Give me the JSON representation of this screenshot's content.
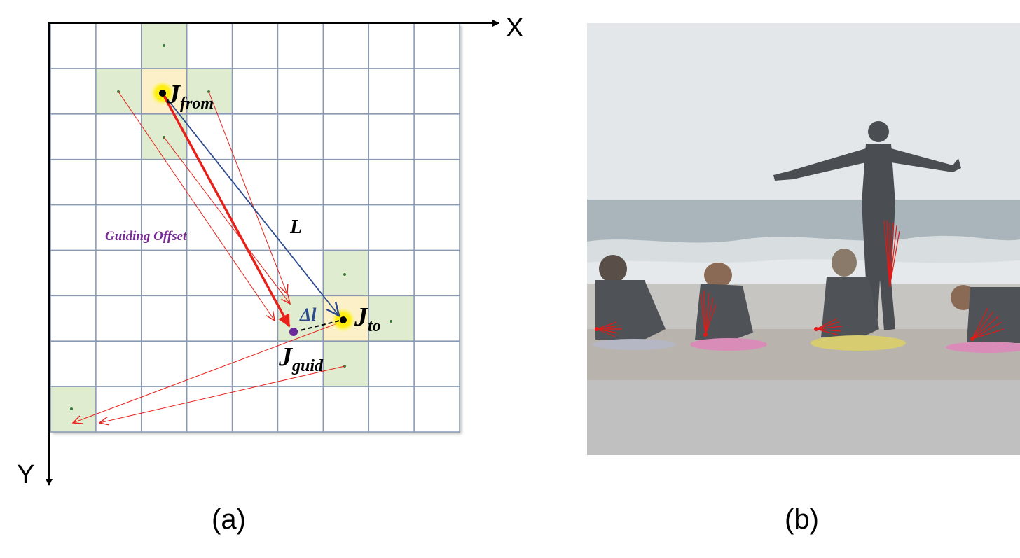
{
  "figure": {
    "panel_a": {
      "caption": "(a)",
      "axes": {
        "x_label": "X",
        "y_label": "Y"
      },
      "labels": {
        "j_from_main": "J",
        "j_from_sub": "from",
        "j_to_main": "J",
        "j_to_sub": "to",
        "j_guid_main": "J",
        "j_guid_sub": "guid",
        "l": "L",
        "delta_l": "Δl",
        "guiding_offset": "Guiding Offset"
      },
      "colors": {
        "grid_line": "#8a9ab5",
        "highlight_cell": "#dfeccf",
        "joint_cell": "#fbf0c8",
        "joint_glow": "#ffee00",
        "red_arrow": "#e8201a",
        "blue_arrow": "#2b4a8f",
        "guid_point": "#6a2a9a",
        "guiding_offset_text": "#7a2a98"
      }
    },
    "panel_b": {
      "caption": "(b)",
      "colors": {
        "sky": "#e4e7ea",
        "sea": "#a9b4ba",
        "sand": "#b8b4ad",
        "gray_band": "#c0c0c0",
        "offset_lines": "#e01b17"
      }
    }
  }
}
